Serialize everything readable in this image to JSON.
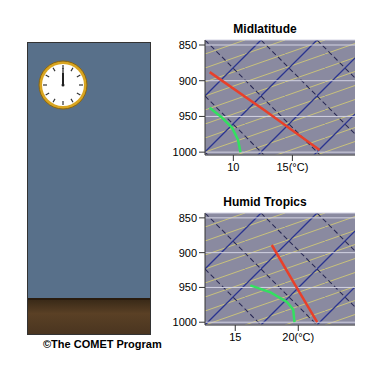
{
  "credit": "©The COMET Program",
  "chart_data": [
    {
      "type": "line",
      "title": "Midlatitude",
      "xlim": [
        7.6,
        20.3
      ],
      "xticks": [
        10,
        {
          "value": 15,
          "label": "15(°C)"
        }
      ],
      "ylim": [
        843,
        1004
      ],
      "yticks": [
        850,
        900,
        950,
        1000
      ],
      "grid": true,
      "series": [
        {
          "color": "#e8402a",
          "x": [
            8.0,
            12.7,
            17.3
          ],
          "values": [
            888,
            942,
            997
          ]
        },
        {
          "color": "#33e060",
          "x": [
            8.0,
            9.0,
            9.9,
            10.4,
            10.6
          ],
          "values": [
            938,
            951,
            966,
            983,
            1000
          ]
        }
      ]
    },
    {
      "type": "line",
      "title": "Humid Tropics",
      "xlim": [
        12.6,
        24.5
      ],
      "xticks": [
        15,
        {
          "value": 20,
          "label": "20(°C)"
        }
      ],
      "ylim": [
        843,
        1004
      ],
      "yticks": [
        850,
        900,
        950,
        1000
      ],
      "grid": true,
      "series": [
        {
          "color": "#e8402a",
          "x": [
            17.9,
            19.7,
            21.5
          ],
          "values": [
            889,
            945,
            1000
          ]
        },
        {
          "color": "#33e060",
          "x": [
            16.2,
            17.8,
            19.1,
            19.6,
            19.7
          ],
          "values": [
            947,
            957,
            971,
            982,
            1000
          ]
        }
      ]
    }
  ]
}
